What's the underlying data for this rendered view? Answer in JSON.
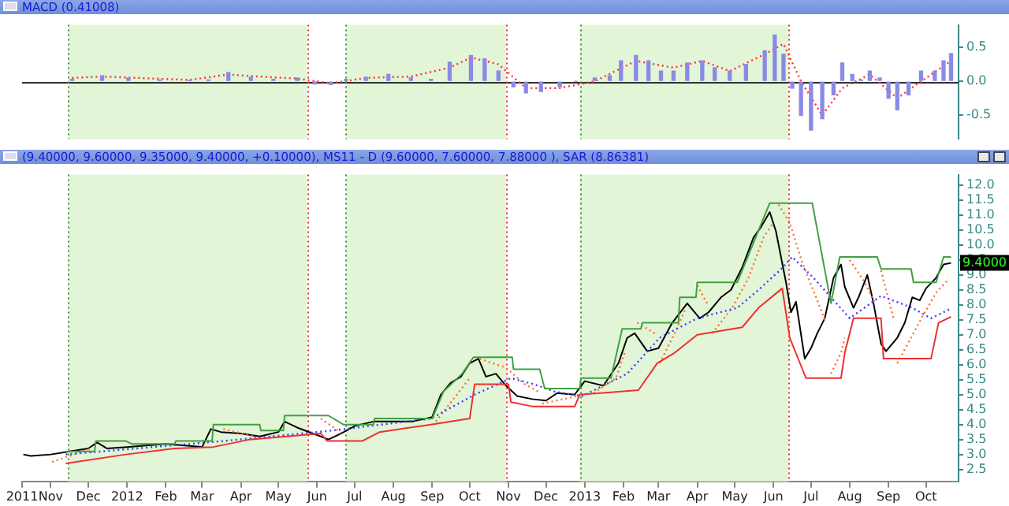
{
  "chart_data": [
    {
      "type": "bar",
      "title": "MACD (0.41008)",
      "tick_labels": "y",
      "grid": false,
      "xlim": [
        "2011-10-09",
        "2013-10-27"
      ],
      "ylim": [
        -0.85,
        0.83
      ],
      "yticks": [
        0.5,
        {
          "value": 0,
          "label": "0.0"
        },
        -0.5
      ],
      "bands": [
        {
          "axis": "x",
          "from": "2011-11-15",
          "to": "2012-05-24",
          "color": "#e2f5d6"
        },
        {
          "axis": "x",
          "from": "2012-06-24",
          "to": "2012-10-30",
          "color": "#e2f5d6"
        },
        {
          "axis": "x",
          "from": "2012-12-28",
          "to": "2013-06-13",
          "color": "#e2f5d6"
        }
      ],
      "ref_lines": [
        {
          "axis": "y",
          "value": 0,
          "color": "#303030",
          "line_style": "solid"
        },
        {
          "axis": "x",
          "value": "2011-11-15",
          "color": "#409040",
          "line_style": "dotted"
        },
        {
          "axis": "x",
          "value": "2012-05-24",
          "color": "#e03030",
          "line_style": "dotted"
        },
        {
          "axis": "x",
          "value": "2012-06-24",
          "color": "#409040",
          "line_style": "dotted"
        },
        {
          "axis": "x",
          "value": "2012-10-30",
          "color": "#e03030",
          "line_style": "dotted"
        },
        {
          "axis": "x",
          "value": "2012-12-28",
          "color": "#409040",
          "line_style": "dotted"
        },
        {
          "axis": "x",
          "value": "2013-06-13",
          "color": "#e03030",
          "line_style": "dotted"
        }
      ],
      "series": [
        {
          "color": "#8a8ae6",
          "x": [
            "2011-11-18",
            "2011-12-12",
            "2012-01-02",
            "2012-01-27",
            "2012-02-20",
            "2012-03-06",
            "2012-03-22",
            "2012-04-09",
            "2012-04-27",
            "2012-05-16",
            "2012-05-30",
            "2012-06-12",
            "2012-06-24",
            "2012-07-10",
            "2012-07-28",
            "2012-08-15",
            "2012-08-31",
            "2012-09-15",
            "2012-10-02",
            "2012-10-13",
            "2012-10-24",
            "2012-11-05",
            "2012-11-15",
            "2012-11-27",
            "2012-12-12",
            "2012-12-25",
            "2013-01-09",
            "2013-01-21",
            "2013-01-30",
            "2013-02-11",
            "2013-02-21",
            "2013-03-03",
            "2013-03-13",
            "2013-03-24",
            "2013-04-05",
            "2013-04-15",
            "2013-04-27",
            "2013-05-10",
            "2013-05-25",
            "2013-06-02",
            "2013-06-09",
            "2013-06-16",
            "2013-06-23",
            "2013-07-01",
            "2013-07-10",
            "2013-07-19",
            "2013-07-26",
            "2013-08-03",
            "2013-08-10",
            "2013-08-17",
            "2013-08-25",
            "2013-09-01",
            "2013-09-08",
            "2013-09-17",
            "2013-09-27",
            "2013-10-08",
            "2013-10-15",
            "2013-10-21"
          ],
          "values": [
            0.03,
            0.08,
            0.05,
            0.02,
            0.01,
            0.02,
            0.13,
            0.06,
            0.03,
            0.05,
            -0.04,
            -0.05,
            0.03,
            0.06,
            0.1,
            0.05,
            0.03,
            0.28,
            0.38,
            0.33,
            0.15,
            -0.08,
            -0.17,
            -0.15,
            -0.08,
            0.0,
            0.05,
            0.08,
            0.3,
            0.38,
            0.3,
            0.15,
            0.15,
            0.27,
            0.3,
            0.2,
            0.15,
            0.25,
            0.45,
            0.68,
            0.4,
            -0.1,
            -0.5,
            -0.72,
            -0.55,
            -0.2,
            0.27,
            0.1,
            0.02,
            0.15,
            0.05,
            -0.25,
            -0.42,
            -0.2,
            0.15,
            0.15,
            0.3,
            0.41
          ]
        },
        {
          "type": "line",
          "color": "#ff3030",
          "line_style": "dotted",
          "x": [
            "2011-11-18",
            "2011-12-12",
            "2012-02-20",
            "2012-03-22",
            "2012-04-15",
            "2012-05-16",
            "2012-06-12",
            "2012-07-10",
            "2012-08-15",
            "2012-09-15",
            "2012-10-02",
            "2012-10-24",
            "2012-11-15",
            "2012-12-12",
            "2013-01-09",
            "2013-02-11",
            "2013-03-13",
            "2013-04-05",
            "2013-04-27",
            "2013-05-25",
            "2013-06-09",
            "2013-06-23",
            "2013-07-10",
            "2013-07-26",
            "2013-08-17",
            "2013-09-08",
            "2013-09-27",
            "2013-10-21"
          ],
          "values": [
            0.05,
            0.07,
            0.02,
            0.1,
            0.07,
            0.04,
            -0.03,
            0.05,
            0.07,
            0.2,
            0.35,
            0.25,
            -0.1,
            -0.1,
            0.0,
            0.3,
            0.2,
            0.3,
            0.15,
            0.4,
            0.55,
            0.0,
            -0.5,
            -0.1,
            0.1,
            -0.25,
            0.0,
            0.3
          ]
        }
      ]
    },
    {
      "type": "line",
      "title": "(9.40000, 9.60000, 9.35000, 9.40000, +0.10000), MS11 - D (9.60000, 7.60000, 7.88000 ), SAR (8.86381)",
      "grid": false,
      "xlim": [
        "2011-10-09",
        "2013-10-27"
      ],
      "xticks": [
        {
          "value": "2011-10-09",
          "label": "2011"
        },
        {
          "value": "2011-11-01",
          "label": "Nov"
        },
        {
          "value": "2011-12-01",
          "label": "Dec"
        },
        {
          "value": "2012-01-01",
          "label": "2012"
        },
        {
          "value": "2012-02-01",
          "label": "Feb"
        },
        {
          "value": "2012-03-01",
          "label": "Mar"
        },
        {
          "value": "2012-04-01",
          "label": "Apr"
        },
        {
          "value": "2012-05-01",
          "label": "May"
        },
        {
          "value": "2012-06-01",
          "label": "Jun"
        },
        {
          "value": "2012-07-01",
          "label": "Jul"
        },
        {
          "value": "2012-08-01",
          "label": "Aug"
        },
        {
          "value": "2012-09-01",
          "label": "Sep"
        },
        {
          "value": "2012-10-01",
          "label": "Oct"
        },
        {
          "value": "2012-11-01",
          "label": "Nov"
        },
        {
          "value": "2012-12-01",
          "label": "Dec"
        },
        {
          "value": "2013-01-01",
          "label": "2013"
        },
        {
          "value": "2013-02-01",
          "label": "Feb"
        },
        {
          "value": "2013-03-01",
          "label": "Mar"
        },
        {
          "value": "2013-04-01",
          "label": "Apr"
        },
        {
          "value": "2013-05-01",
          "label": "May"
        },
        {
          "value": "2013-06-01",
          "label": "Jun"
        },
        {
          "value": "2013-07-01",
          "label": "Jul"
        },
        {
          "value": "2013-08-01",
          "label": "Aug"
        },
        {
          "value": "2013-09-01",
          "label": "Sep"
        },
        {
          "value": "2013-10-01",
          "label": "Oct"
        }
      ],
      "ylim": [
        2.1,
        12.35
      ],
      "yticks": [
        2.5,
        {
          "value": 3,
          "label": "3.0"
        },
        3.5,
        {
          "value": 4,
          "label": "4.0"
        },
        4.5,
        {
          "value": 5,
          "label": "5.0"
        },
        5.5,
        {
          "value": 6,
          "label": "6.0"
        },
        6.5,
        {
          "value": 7,
          "label": "7.0"
        },
        7.5,
        {
          "value": 8,
          "label": "8.0"
        },
        8.5,
        {
          "value": 9,
          "label": "9.0"
        },
        9.5,
        {
          "value": 10,
          "label": "10.0"
        },
        10.5,
        {
          "value": 11,
          "label": "11.0"
        },
        11.5,
        {
          "value": 12,
          "label": "12.0"
        }
      ],
      "bands": [
        {
          "axis": "x",
          "from": "2011-11-15",
          "to": "2012-05-24",
          "color": "#e2f5d6"
        },
        {
          "axis": "x",
          "from": "2012-06-24",
          "to": "2012-10-30",
          "color": "#e2f5d6"
        },
        {
          "axis": "x",
          "from": "2012-12-28",
          "to": "2013-06-13",
          "color": "#e2f5d6"
        }
      ],
      "ref_lines": [
        {
          "axis": "x",
          "value": "2011-11-15",
          "color": "#409040",
          "line_style": "dotted"
        },
        {
          "axis": "x",
          "value": "2012-05-24",
          "color": "#e03030",
          "line_style": "dotted"
        },
        {
          "axis": "x",
          "value": "2012-06-24",
          "color": "#409040",
          "line_style": "dotted"
        },
        {
          "axis": "x",
          "value": "2012-10-30",
          "color": "#e03030",
          "line_style": "dotted"
        },
        {
          "axis": "x",
          "value": "2012-12-28",
          "color": "#409040",
          "line_style": "dotted"
        },
        {
          "axis": "x",
          "value": "2013-06-13",
          "color": "#e03030",
          "line_style": "dotted"
        }
      ],
      "annotations": [
        {
          "text": "9.4000",
          "x": "2013-10-21",
          "y": 9.4
        }
      ],
      "series": [
        {
          "color": "#40a040",
          "line_style": "solid",
          "x": [
            "2011-11-13",
            "2011-12-06",
            "2011-12-07",
            "2011-12-31",
            "2012-01-05",
            "2012-02-08",
            "2012-02-09",
            "2012-03-09",
            "2012-03-10",
            "2012-04-16",
            "2012-04-17",
            "2012-05-05",
            "2012-05-06",
            "2012-06-10",
            "2012-06-22",
            "2012-07-16",
            "2012-07-17",
            "2012-09-01",
            "2012-09-10",
            "2012-09-25",
            "2012-10-04",
            "2012-11-04",
            "2012-11-05",
            "2012-11-26",
            "2012-11-30",
            "2012-12-28",
            "2012-12-29",
            "2013-01-22",
            "2013-01-31",
            "2013-02-15",
            "2013-02-16",
            "2013-03-17",
            "2013-03-18",
            "2013-03-31",
            "2013-04-01",
            "2013-05-03",
            "2013-05-29",
            "2013-07-02",
            "2013-07-17",
            "2013-07-24",
            "2013-08-23",
            "2013-08-26",
            "2013-09-19",
            "2013-09-21",
            "2013-10-09",
            "2013-10-15",
            "2013-10-21"
          ],
          "values": [
            3.1,
            3.1,
            3.45,
            3.45,
            3.35,
            3.35,
            3.45,
            3.45,
            4.0,
            4.0,
            3.8,
            3.8,
            4.3,
            4.3,
            4.0,
            4.0,
            4.2,
            4.2,
            5.1,
            5.7,
            6.25,
            6.25,
            5.85,
            5.85,
            5.2,
            5.2,
            5.55,
            5.55,
            7.2,
            7.2,
            7.4,
            7.4,
            8.25,
            8.25,
            8.75,
            8.75,
            11.4,
            11.4,
            8.05,
            9.6,
            9.6,
            9.2,
            9.2,
            8.75,
            8.75,
            9.6,
            9.6
          ]
        },
        {
          "color": "#ee3030",
          "line_style": "solid",
          "x": [
            "2011-11-13",
            "2011-12-31",
            "2012-02-08",
            "2012-03-10",
            "2012-04-08",
            "2012-06-04",
            "2012-06-09",
            "2012-07-07",
            "2012-07-21",
            "2012-08-31",
            "2012-10-01",
            "2012-10-05",
            "2012-11-01",
            "2012-11-03",
            "2012-11-21",
            "2012-12-24",
            "2012-12-28",
            "2013-02-13",
            "2013-02-28",
            "2013-03-14",
            "2013-04-01",
            "2013-05-07",
            "2013-05-20",
            "2013-06-08",
            "2013-06-14",
            "2013-06-27",
            "2013-07-25",
            "2013-07-28",
            "2013-08-04",
            "2013-08-26",
            "2013-08-28",
            "2013-10-05",
            "2013-10-11",
            "2013-10-21"
          ],
          "values": [
            2.7,
            3.0,
            3.2,
            3.25,
            3.5,
            3.7,
            3.45,
            3.45,
            3.75,
            4.0,
            4.2,
            5.35,
            5.35,
            4.75,
            4.6,
            4.6,
            5.0,
            5.15,
            6.05,
            6.4,
            7.0,
            7.25,
            7.9,
            8.55,
            6.9,
            5.55,
            5.55,
            6.4,
            7.55,
            7.55,
            6.2,
            6.2,
            7.4,
            7.6
          ]
        },
        {
          "color": "#3c3cff",
          "line_style": "dotted",
          "x": [
            "2011-11-13",
            "2012-03-18",
            "2012-06-13",
            "2012-08-31",
            "2012-10-05",
            "2012-11-03",
            "2012-11-21",
            "2012-12-08",
            "2012-12-30",
            "2013-02-04",
            "2013-03-02",
            "2013-04-01",
            "2013-05-03",
            "2013-05-20",
            "2013-06-06",
            "2013-06-16",
            "2013-07-03",
            "2013-07-17",
            "2013-08-01",
            "2013-08-26",
            "2013-09-20",
            "2013-10-05",
            "2013-10-21"
          ],
          "values": [
            3.0,
            3.45,
            3.8,
            4.2,
            5.0,
            5.55,
            5.35,
            5.1,
            4.95,
            5.7,
            6.9,
            7.55,
            7.9,
            8.5,
            9.15,
            9.6,
            8.9,
            8.25,
            7.55,
            8.3,
            7.9,
            7.55,
            7.88
          ]
        },
        {
          "color": "#ff7030",
          "line_style": "dotted",
          "x": [
            "2011-11-02",
            "2011-12-03",
            "2012-01-01",
            "2012-03-18",
            "2012-04-12",
            "2012-05-01",
            "2012-06-04",
            "2012-06-21",
            "2012-08-01",
            "2012-09-04",
            "2012-10-01",
            "2012-10-05",
            "2012-10-09",
            "2012-10-30",
            "2012-11-14",
            "2012-11-25",
            "2012-11-27",
            "2012-11-28",
            "2012-12-26",
            "2013-01-01",
            "2013-01-08",
            "2013-01-26",
            "2013-02-02",
            "2013-02-08",
            "2013-02-12",
            "2013-02-28",
            "2013-03-01",
            "2013-03-02",
            "2013-03-14",
            "2013-03-23",
            "2013-03-28",
            "2013-04-01",
            "2013-04-09",
            "2013-04-11",
            "2013-04-13",
            "2013-04-29",
            "2013-05-12",
            "2013-05-24",
            "2013-06-01",
            "2013-06-03",
            "2013-06-05",
            "2013-06-14",
            "2013-06-24",
            "2013-07-07",
            "2013-07-13",
            "2013-07-15",
            "2013-07-17",
            "2013-07-25",
            "2013-07-28",
            "2013-07-30",
            "2013-08-01",
            "2013-08-13",
            "2013-08-21",
            "2013-08-23",
            "2013-08-26",
            "2013-09-05",
            "2013-09-06",
            "2013-09-08",
            "2013-09-28",
            "2013-10-09",
            "2013-10-19"
          ],
          "values": [
            2.75,
            3.2,
            null,
            3.85,
            3.6,
            null,
            4.2,
            3.7,
            null,
            4.1,
            5.55,
            null,
            6.2,
            5.9,
            5.35,
            5.1,
            null,
            4.7,
            4.95,
            null,
            5.05,
            5.55,
            6.4,
            null,
            7.4,
            7.0,
            null,
            6.05,
            7.05,
            7.9,
            null,
            8.65,
            8.05,
            null,
            7.05,
            7.9,
            8.9,
            10.25,
            10.75,
            null,
            11.35,
            10.75,
            9.4,
            8.05,
            7.4,
            null,
            5.7,
            6.4,
            6.9,
            null,
            9.5,
            8.75,
            8.05,
            null,
            9.15,
            7.55,
            null,
            6.05,
            7.6,
            8.4,
            8.86
          ]
        },
        {
          "color": "#000000",
          "line_style": "solid",
          "x": [
            "2011-10-10",
            "2011-10-16",
            "2011-11-01",
            "2011-11-16",
            "2011-12-01",
            "2011-12-08",
            "2011-12-16",
            "2012-01-01",
            "2012-01-16",
            "2012-02-01",
            "2012-02-16",
            "2012-03-01",
            "2012-03-08",
            "2012-03-16",
            "2012-04-01",
            "2012-04-16",
            "2012-05-01",
            "2012-05-06",
            "2012-05-16",
            "2012-06-01",
            "2012-06-10",
            "2012-06-20",
            "2012-07-01",
            "2012-07-16",
            "2012-08-01",
            "2012-08-16",
            "2012-09-01",
            "2012-09-08",
            "2012-09-16",
            "2012-09-24",
            "2012-10-01",
            "2012-10-08",
            "2012-10-14",
            "2012-10-22",
            "2012-10-30",
            "2012-11-08",
            "2012-11-20",
            "2012-12-01",
            "2012-12-10",
            "2012-12-24",
            "2013-01-01",
            "2013-01-16",
            "2013-01-28",
            "2013-02-04",
            "2013-02-10",
            "2013-02-20",
            "2013-03-01",
            "2013-03-12",
            "2013-03-24",
            "2013-04-03",
            "2013-04-10",
            "2013-04-20",
            "2013-04-28",
            "2013-05-07",
            "2013-05-16",
            "2013-05-22",
            "2013-05-29",
            "2013-06-03",
            "2013-06-07",
            "2013-06-11",
            "2013-06-15",
            "2013-06-19",
            "2013-06-26",
            "2013-07-01",
            "2013-07-06",
            "2013-07-12",
            "2013-07-19",
            "2013-07-25",
            "2013-07-28",
            "2013-08-04",
            "2013-08-08",
            "2013-08-15",
            "2013-08-20",
            "2013-08-26",
            "2013-08-30",
            "2013-09-08",
            "2013-09-14",
            "2013-09-20",
            "2013-09-26",
            "2013-10-01",
            "2013-10-09",
            "2013-10-15",
            "2013-10-21"
          ],
          "values": [
            3.0,
            2.95,
            3.0,
            3.1,
            3.2,
            3.4,
            3.2,
            3.25,
            3.3,
            3.35,
            3.3,
            3.25,
            3.85,
            3.75,
            3.7,
            3.6,
            3.75,
            4.1,
            3.9,
            3.65,
            3.5,
            3.7,
            3.95,
            4.1,
            4.1,
            4.1,
            4.25,
            5.0,
            5.4,
            5.6,
            6.05,
            6.2,
            5.6,
            5.7,
            5.3,
            4.95,
            4.85,
            4.8,
            5.05,
            5.0,
            5.45,
            5.3,
            6.05,
            6.9,
            7.05,
            6.45,
            6.55,
            7.4,
            8.05,
            7.55,
            7.75,
            8.25,
            8.5,
            9.25,
            10.25,
            10.6,
            11.1,
            10.45,
            9.6,
            8.75,
            7.75,
            8.1,
            6.2,
            6.55,
            7.05,
            7.55,
            8.9,
            9.35,
            8.6,
            7.9,
            8.25,
            9.0,
            8.05,
            6.7,
            6.45,
            6.9,
            7.4,
            8.25,
            8.15,
            8.55,
            8.9,
            9.35,
            9.4
          ]
        }
      ]
    }
  ]
}
